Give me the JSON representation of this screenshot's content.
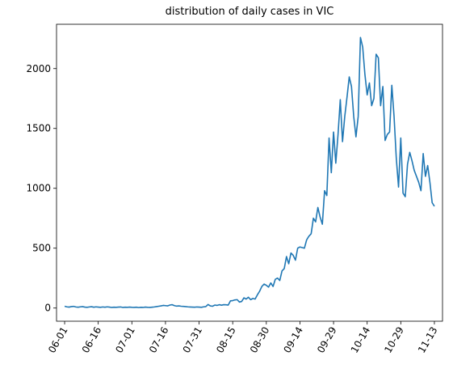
{
  "chart_data": {
    "type": "line",
    "title": "distribution of daily cases in VIC",
    "categories": [
      "06-01",
      null,
      null,
      null,
      null,
      null,
      null,
      null,
      null,
      null,
      null,
      null,
      null,
      null,
      null,
      "06-16",
      null,
      null,
      null,
      null,
      null,
      null,
      null,
      null,
      null,
      null,
      null,
      null,
      null,
      null,
      "07-01",
      null,
      null,
      null,
      null,
      null,
      null,
      null,
      null,
      null,
      null,
      null,
      null,
      null,
      null,
      "07-16",
      null,
      null,
      null,
      null,
      null,
      null,
      null,
      null,
      null,
      null,
      null,
      null,
      null,
      null,
      "07-31",
      null,
      null,
      null,
      null,
      null,
      null,
      null,
      null,
      null,
      null,
      null,
      null,
      null,
      null,
      "08-15",
      null,
      null,
      null,
      null,
      null,
      null,
      null,
      null,
      null,
      null,
      null,
      null,
      null,
      null,
      "08-30",
      null,
      null,
      null,
      null,
      null,
      null,
      null,
      null,
      null,
      null,
      null,
      null,
      null,
      null,
      "09-14",
      null,
      null,
      null,
      null,
      null,
      null,
      null,
      null,
      null,
      null,
      null,
      null,
      null,
      null,
      "09-29",
      null,
      null,
      null,
      null,
      null,
      null,
      null,
      null,
      null,
      null,
      null,
      null,
      null,
      null,
      "10-14",
      null,
      null,
      null,
      null,
      null,
      null,
      null,
      null,
      null,
      null,
      null,
      null,
      null,
      null,
      "10-29",
      null,
      null,
      null,
      null,
      null,
      null,
      null,
      null,
      null,
      null,
      null,
      null,
      null,
      null,
      "11-13"
    ],
    "series": [
      {
        "color": "#1f77b4",
        "values": [
          15,
          10,
          8,
          12,
          14,
          9,
          7,
          10,
          12,
          8,
          6,
          9,
          11,
          7,
          10,
          8,
          6,
          9,
          7,
          10,
          8,
          5,
          7,
          6,
          8,
          9,
          5,
          7,
          6,
          8,
          6,
          5,
          7,
          4,
          6,
          5,
          8,
          6,
          5,
          7,
          9,
          12,
          15,
          18,
          22,
          20,
          18,
          25,
          28,
          20,
          16,
          18,
          15,
          14,
          12,
          10,
          9,
          8,
          7,
          9,
          8,
          6,
          10,
          12,
          30,
          18,
          15,
          25,
          22,
          28,
          24,
          28,
          27,
          25,
          60,
          62,
          68,
          70,
          50,
          55,
          85,
          75,
          90,
          70,
          80,
          75,
          110,
          140,
          180,
          200,
          190,
          175,
          210,
          180,
          240,
          250,
          230,
          310,
          330,
          430,
          370,
          460,
          440,
          400,
          500,
          510,
          505,
          500,
          570,
          600,
          620,
          750,
          720,
          840,
          760,
          700,
          980,
          940,
          1420,
          1130,
          1470,
          1210,
          1450,
          1740,
          1390,
          1600,
          1760,
          1930,
          1850,
          1600,
          1430,
          1600,
          2260,
          2180,
          1950,
          1780,
          1880,
          1690,
          1750,
          2120,
          2090,
          1690,
          1850,
          1400,
          1450,
          1470,
          1860,
          1600,
          1250,
          1010,
          1420,
          960,
          930,
          1200,
          1300,
          1230,
          1150,
          1100,
          1050,
          980,
          1290,
          1100,
          1190,
          1050,
          880,
          850
        ]
      }
    ],
    "ylim": [
      -110,
      2370
    ],
    "yticks": [
      0,
      500,
      1000,
      1500,
      2000
    ]
  }
}
